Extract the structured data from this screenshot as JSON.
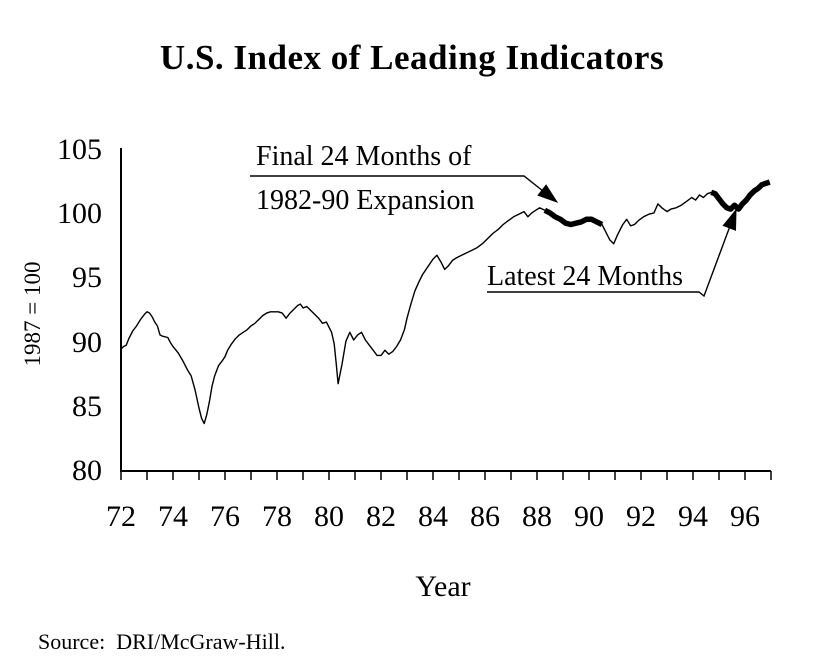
{
  "title": "U.S. Index of Leading Indicators",
  "source_note": "Source:  DRI/McGraw-Hill.",
  "chart_data": {
    "type": "line",
    "title": "U.S. Index of Leading Indicators",
    "xlabel": "Year",
    "ylabel": "1987 = 100",
    "xlim": [
      1972,
      1997
    ],
    "ylim": [
      80,
      105
    ],
    "grid": false,
    "line_color": "#000000",
    "background": "#ffffff",
    "y_ticks": [
      105,
      100,
      95,
      90,
      85,
      80
    ],
    "x_tick_years": [
      1972,
      1974,
      1976,
      1978,
      1980,
      1982,
      1984,
      1986,
      1988,
      1990,
      1992,
      1994,
      1996
    ],
    "x_tick_labels": [
      "72",
      "74",
      "76",
      "78",
      "80",
      "82",
      "84",
      "86",
      "88",
      "90",
      "92",
      "94",
      "96"
    ],
    "minor_tick_interval_years": 1,
    "series": [
      {
        "name": "U.S. Index of Leading Indicators (1987 = 100)",
        "points": [
          [
            1972.0,
            89.5
          ],
          [
            1972.1,
            89.7
          ],
          [
            1972.2,
            89.8
          ],
          [
            1972.3,
            90.3
          ],
          [
            1972.45,
            90.9
          ],
          [
            1972.6,
            91.3
          ],
          [
            1972.75,
            91.8
          ],
          [
            1972.9,
            92.2
          ],
          [
            1973.0,
            92.4
          ],
          [
            1973.1,
            92.3
          ],
          [
            1973.2,
            92.0
          ],
          [
            1973.3,
            91.6
          ],
          [
            1973.4,
            91.3
          ],
          [
            1973.5,
            90.6
          ],
          [
            1973.6,
            90.5
          ],
          [
            1973.8,
            90.4
          ],
          [
            1973.9,
            90.0
          ],
          [
            1974.0,
            89.7
          ],
          [
            1974.2,
            89.2
          ],
          [
            1974.4,
            88.5
          ],
          [
            1974.55,
            87.9
          ],
          [
            1974.7,
            87.4
          ],
          [
            1974.85,
            86.3
          ],
          [
            1975.0,
            84.9
          ],
          [
            1975.1,
            84.1
          ],
          [
            1975.2,
            83.7
          ],
          [
            1975.3,
            84.4
          ],
          [
            1975.4,
            85.4
          ],
          [
            1975.5,
            86.6
          ],
          [
            1975.6,
            87.4
          ],
          [
            1975.75,
            88.2
          ],
          [
            1975.9,
            88.6
          ],
          [
            1976.0,
            88.9
          ],
          [
            1976.1,
            89.4
          ],
          [
            1976.25,
            89.9
          ],
          [
            1976.4,
            90.3
          ],
          [
            1976.55,
            90.6
          ],
          [
            1976.7,
            90.8
          ],
          [
            1976.85,
            91.0
          ],
          [
            1977.0,
            91.3
          ],
          [
            1977.15,
            91.5
          ],
          [
            1977.3,
            91.8
          ],
          [
            1977.45,
            92.1
          ],
          [
            1977.6,
            92.3
          ],
          [
            1977.75,
            92.4
          ],
          [
            1977.9,
            92.4
          ],
          [
            1978.05,
            92.4
          ],
          [
            1978.2,
            92.3
          ],
          [
            1978.35,
            91.9
          ],
          [
            1978.5,
            92.3
          ],
          [
            1978.65,
            92.6
          ],
          [
            1978.8,
            92.9
          ],
          [
            1978.9,
            93.0
          ],
          [
            1979.0,
            92.7
          ],
          [
            1979.15,
            92.8
          ],
          [
            1979.3,
            92.5
          ],
          [
            1979.45,
            92.2
          ],
          [
            1979.6,
            91.9
          ],
          [
            1979.75,
            91.5
          ],
          [
            1979.9,
            91.6
          ],
          [
            1980.0,
            91.2
          ],
          [
            1980.1,
            90.8
          ],
          [
            1980.2,
            89.9
          ],
          [
            1980.28,
            88.3
          ],
          [
            1980.35,
            86.8
          ],
          [
            1980.5,
            88.3
          ],
          [
            1980.65,
            90.1
          ],
          [
            1980.8,
            90.8
          ],
          [
            1980.95,
            90.2
          ],
          [
            1981.1,
            90.6
          ],
          [
            1981.25,
            90.8
          ],
          [
            1981.4,
            90.2
          ],
          [
            1981.55,
            89.8
          ],
          [
            1981.7,
            89.4
          ],
          [
            1981.85,
            89.0
          ],
          [
            1982.0,
            89.0
          ],
          [
            1982.15,
            89.4
          ],
          [
            1982.3,
            89.1
          ],
          [
            1982.45,
            89.3
          ],
          [
            1982.6,
            89.7
          ],
          [
            1982.75,
            90.2
          ],
          [
            1982.9,
            91.0
          ],
          [
            1983.0,
            91.9
          ],
          [
            1983.15,
            93.0
          ],
          [
            1983.3,
            94.0
          ],
          [
            1983.45,
            94.7
          ],
          [
            1983.6,
            95.3
          ],
          [
            1983.8,
            95.9
          ],
          [
            1984.0,
            96.5
          ],
          [
            1984.15,
            96.8
          ],
          [
            1984.3,
            96.3
          ],
          [
            1984.45,
            95.7
          ],
          [
            1984.6,
            96.0
          ],
          [
            1984.75,
            96.4
          ],
          [
            1984.9,
            96.6
          ],
          [
            1985.1,
            96.8
          ],
          [
            1985.3,
            97.0
          ],
          [
            1985.5,
            97.2
          ],
          [
            1985.7,
            97.4
          ],
          [
            1985.9,
            97.7
          ],
          [
            1986.1,
            98.1
          ],
          [
            1986.3,
            98.5
          ],
          [
            1986.5,
            98.8
          ],
          [
            1986.7,
            99.2
          ],
          [
            1986.9,
            99.5
          ],
          [
            1987.1,
            99.8
          ],
          [
            1987.3,
            100.0
          ],
          [
            1987.5,
            100.2
          ],
          [
            1987.65,
            99.8
          ],
          [
            1987.8,
            100.1
          ],
          [
            1987.95,
            100.3
          ],
          [
            1988.1,
            100.5
          ],
          [
            1988.3,
            100.3
          ],
          [
            1988.5,
            100.1
          ],
          [
            1988.7,
            99.8
          ],
          [
            1988.9,
            99.6
          ],
          [
            1989.1,
            99.3
          ],
          [
            1989.3,
            99.2
          ],
          [
            1989.5,
            99.3
          ],
          [
            1989.7,
            99.4
          ],
          [
            1989.9,
            99.6
          ],
          [
            1990.1,
            99.6
          ],
          [
            1990.3,
            99.4
          ],
          [
            1990.5,
            99.2
          ],
          [
            1990.65,
            98.6
          ],
          [
            1990.8,
            98.0
          ],
          [
            1990.95,
            97.7
          ],
          [
            1991.1,
            98.4
          ],
          [
            1991.3,
            99.2
          ],
          [
            1991.45,
            99.6
          ],
          [
            1991.6,
            99.1
          ],
          [
            1991.75,
            99.2
          ],
          [
            1991.9,
            99.5
          ],
          [
            1992.1,
            99.8
          ],
          [
            1992.3,
            100.0
          ],
          [
            1992.5,
            100.1
          ],
          [
            1992.65,
            100.8
          ],
          [
            1992.8,
            100.5
          ],
          [
            1993.0,
            100.2
          ],
          [
            1993.15,
            100.4
          ],
          [
            1993.35,
            100.5
          ],
          [
            1993.55,
            100.7
          ],
          [
            1993.75,
            101.0
          ],
          [
            1993.95,
            101.3
          ],
          [
            1994.1,
            101.1
          ],
          [
            1994.25,
            101.5
          ],
          [
            1994.4,
            101.3
          ],
          [
            1994.55,
            101.6
          ],
          [
            1994.7,
            101.7
          ],
          [
            1994.85,
            101.6
          ],
          [
            1995.0,
            101.2
          ],
          [
            1995.15,
            100.8
          ],
          [
            1995.3,
            100.5
          ],
          [
            1995.45,
            100.4
          ],
          [
            1995.6,
            100.7
          ],
          [
            1995.75,
            100.4
          ],
          [
            1995.9,
            100.8
          ],
          [
            1996.05,
            101.1
          ],
          [
            1996.2,
            101.5
          ],
          [
            1996.35,
            101.8
          ],
          [
            1996.5,
            102.0
          ],
          [
            1996.65,
            102.3
          ],
          [
            1996.8,
            102.4
          ],
          [
            1996.95,
            102.5
          ]
        ]
      }
    ],
    "highlights": [
      {
        "label": "Final 24 Months of 1982-90 Expansion",
        "x_range": [
          1988.3,
          1990.5
        ]
      },
      {
        "label": "Latest 24 Months",
        "x_range": [
          1994.7,
          1996.95
        ]
      }
    ],
    "annotations": [
      {
        "lines": [
          "Final 24 Months of",
          "1982-90 Expansion"
        ]
      },
      {
        "lines": [
          "Latest 24 Months"
        ]
      }
    ]
  }
}
